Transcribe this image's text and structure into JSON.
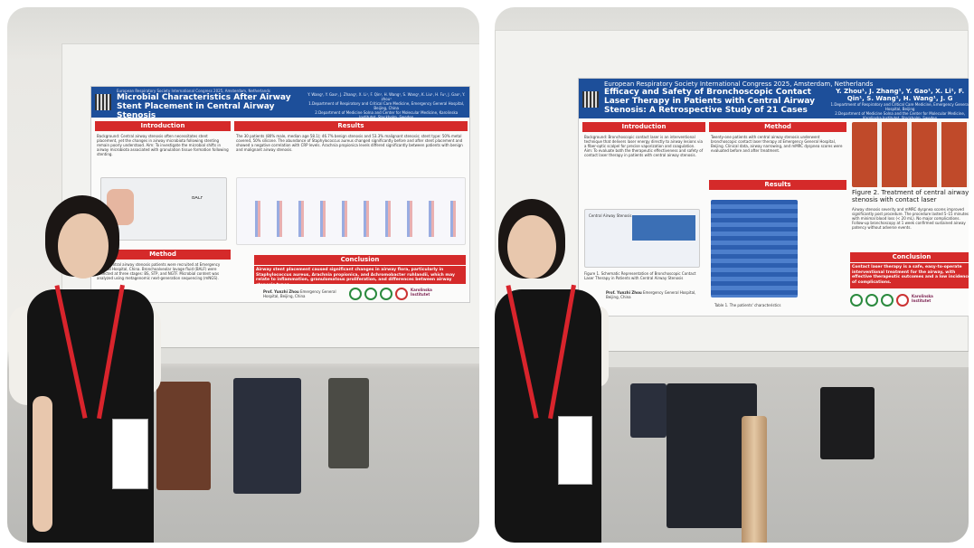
{
  "photo_left": {
    "poster": {
      "conference": "European Respiratory Society International Congress 2025, Amsterdam, Netherlands",
      "title": "Microbial Characteristics After Airway Stent Placement in Central Airway Stenosis",
      "authors": "Y. Wang¹, Y. Gao¹, J. Zhang¹, X. Li¹, F. Qin¹, H. Wang¹, S. Wang¹, K. Liu¹, H. Fu¹, J. Gao¹, Y. zhou¹",
      "affiliation1": "1.Department of Respiratory and Critical Care Medicine, Emergency General Hospital, Beijing, China",
      "affiliation2": "2.Department of Medicine Solna and Center for Molecular Medicine, Karolinska Institutet, Stockholm, Sweden",
      "sections": {
        "introduction": "Introduction",
        "results": "Results",
        "method": "Method",
        "conclusion": "Conclusion"
      },
      "intro_text": "Background: Central airway stenosis often necessitates stent placement, yet the changes in airway microbiota following stenting remain poorly understood. Aim: To investigate the microbial shifts in airway microbiota associated with granulation tissue formation following stenting.",
      "results_text": "The 30 patients (80% male, median age 58.1); 46.7% benign stenosis and 53.3% malignant stenosis; stent type: 50% metal covered, 50% silicone. The abundance of Staphylococcus aureus changed significantly before and after stent placement and showed a negative correlation with CRP levels. Arachnia propionica levels differed significantly between patients with benign and malignant airway stenosis.",
      "method_text": "Thirty central airway stenosis patients were recruited at Emergency General Hospital, China. Bronchoalveolar lavage fluid (BALF) were collected at three stages: BS, STP, and NGTF. Microbial content was analyzed using metagenomic next-generation sequencing (mNGS).",
      "conclusion_text": "Airway stent placement caused significant changes in airway flora, particularly in Staphylococcus aureus, Arachnia propionica, and Achromobacter ruhlandii, which may relate to inflammation, granulomatous proliferation, and differences between airway stenosis types.",
      "presenter": "Prof. Yunzhi Zhou",
      "presenter_affil": "Emergency General Hospital, Beijing, China",
      "label_balf": "BALF",
      "logo_text": "Karolinska Institutet"
    }
  },
  "photo_right": {
    "poster": {
      "conference": "European Respiratory Society International Congress 2025, Amsterdam, Netherlands",
      "title": "Efficacy and Safety of Bronchoscopic Contact Laser Therapy in Patients with Central Airway Stenosis: A Retrospective Study of 21 Cases",
      "authors": "Y. Zhou¹, J. Zhang¹, Y. Gao¹, X. Li¹, F. Qin¹, S. Wang¹, H. Wang¹, J. G",
      "affiliation1": "1.Department of Respiratory and Critical Care Medicine, Emergency General Hospital, Beijing",
      "affiliation2": "2.Department of Medicine Solna and the Center for Molecular Medicine, Karolinska Institutet, Stockholm, Sweden",
      "sections": {
        "introduction": "Introduction",
        "method": "Method",
        "results": "Results",
        "conclusion": "Conclusion"
      },
      "intro_text": "Background: Bronchoscopic contact laser is an interventional technique that delivers laser energy directly to airway lesions via a fiber-optic scalpel for precise vaporization and coagulation. Aim: To evaluate both the therapeutic effectiveness and safety of contact laser therapy in patients with central airway stenosis.",
      "method_text": "Twenty-one patients with central airway stenosis underwent bronchoscopic contact laser therapy at Emergency General Hospital, Beijing. Clinical data, airway narrowing, and mMRC dyspnea scores were evaluated before and after treatment.",
      "results_text": "Airway stenosis severity and mMRC dyspnea scores improved significantly post procedure. The procedure lasted 5–15 minutes with minimal blood loss (< 20 mL). No major complications. Follow-up bronchoscopy at 1 week confirmed sustained airway patency without adverse events.",
      "table_caption": "Table 1. The patients' characteristics",
      "figure_caption": "Figure 1. Schematic Representation of Bronchoscopic Contact Laser Therapy in Patients with Central Airway Stenosis",
      "figure2_caption": "Figure 2. Treatment of central airway stenosis with contact laser",
      "label_cas": "Central Airway Stenosis",
      "conclusion_text": "Contact laser therapy is a safe, easy-to-operate interventional treatment for the airway, with effective therapeutic outcomes and a low incidence of complications.",
      "presenter": "Prof. Yunzhi Zhou",
      "presenter_affil": "Emergency General Hospital, Beijing, China",
      "logo_text": "Karolinska Institutet"
    }
  },
  "colors": {
    "poster_header": "#1d4f9a",
    "section_red": "#d52a2a",
    "lanyard": "#d8242c"
  }
}
